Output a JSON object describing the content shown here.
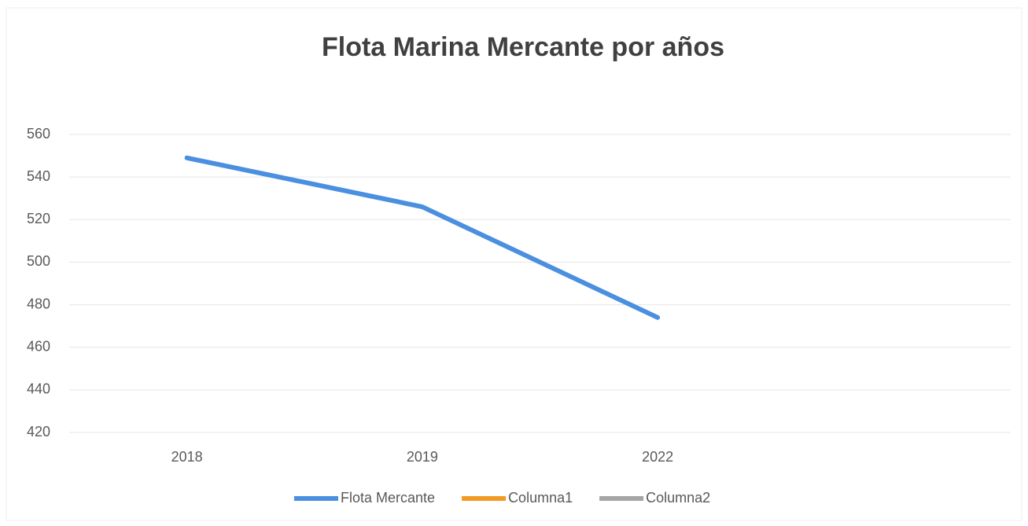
{
  "chart_data": {
    "type": "line",
    "title": "Flota Marina Mercante por años",
    "categories": [
      "2018",
      "2019",
      "2022",
      null
    ],
    "series": [
      {
        "name": "Flota Mercante",
        "color": "#4a8fe0",
        "values": [
          549,
          526,
          474,
          null
        ]
      },
      {
        "name": "Columna1",
        "color": "#f39a24",
        "values": [
          null,
          null,
          null,
          null
        ]
      },
      {
        "name": "Columna2",
        "color": "#a5a5a5",
        "values": [
          null,
          null,
          null,
          null
        ]
      }
    ],
    "ylim": [
      420,
      560
    ],
    "yticks": [
      420,
      440,
      460,
      480,
      500,
      520,
      540,
      560
    ],
    "grid": true,
    "legend": "bottom"
  }
}
